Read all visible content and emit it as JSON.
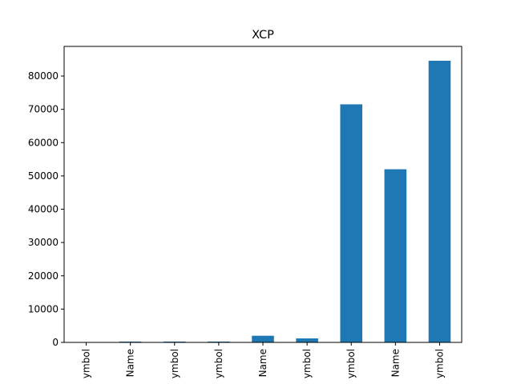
{
  "colors": {
    "bar": "#1f77b4",
    "axis": "#000000",
    "background": "#ffffff"
  },
  "chart_data": {
    "type": "bar",
    "title": "XCP",
    "xlabel": "",
    "ylabel": "",
    "grid": false,
    "legend": "none",
    "categories": [
      "ymbol",
      "Name",
      "ymbol",
      "ymbol",
      "Name",
      "ymbol",
      "ymbol",
      "Name",
      "ymbol"
    ],
    "values": [
      60,
      250,
      250,
      250,
      2000,
      1200,
      71500,
      52000,
      84600
    ],
    "ylim": [
      0,
      88900
    ],
    "yticks": [
      0,
      10000,
      20000,
      30000,
      40000,
      50000,
      60000,
      70000,
      80000
    ],
    "ytick_labels": [
      "0",
      "10000",
      "20000",
      "30000",
      "40000",
      "50000",
      "60000",
      "70000",
      "80000"
    ]
  }
}
